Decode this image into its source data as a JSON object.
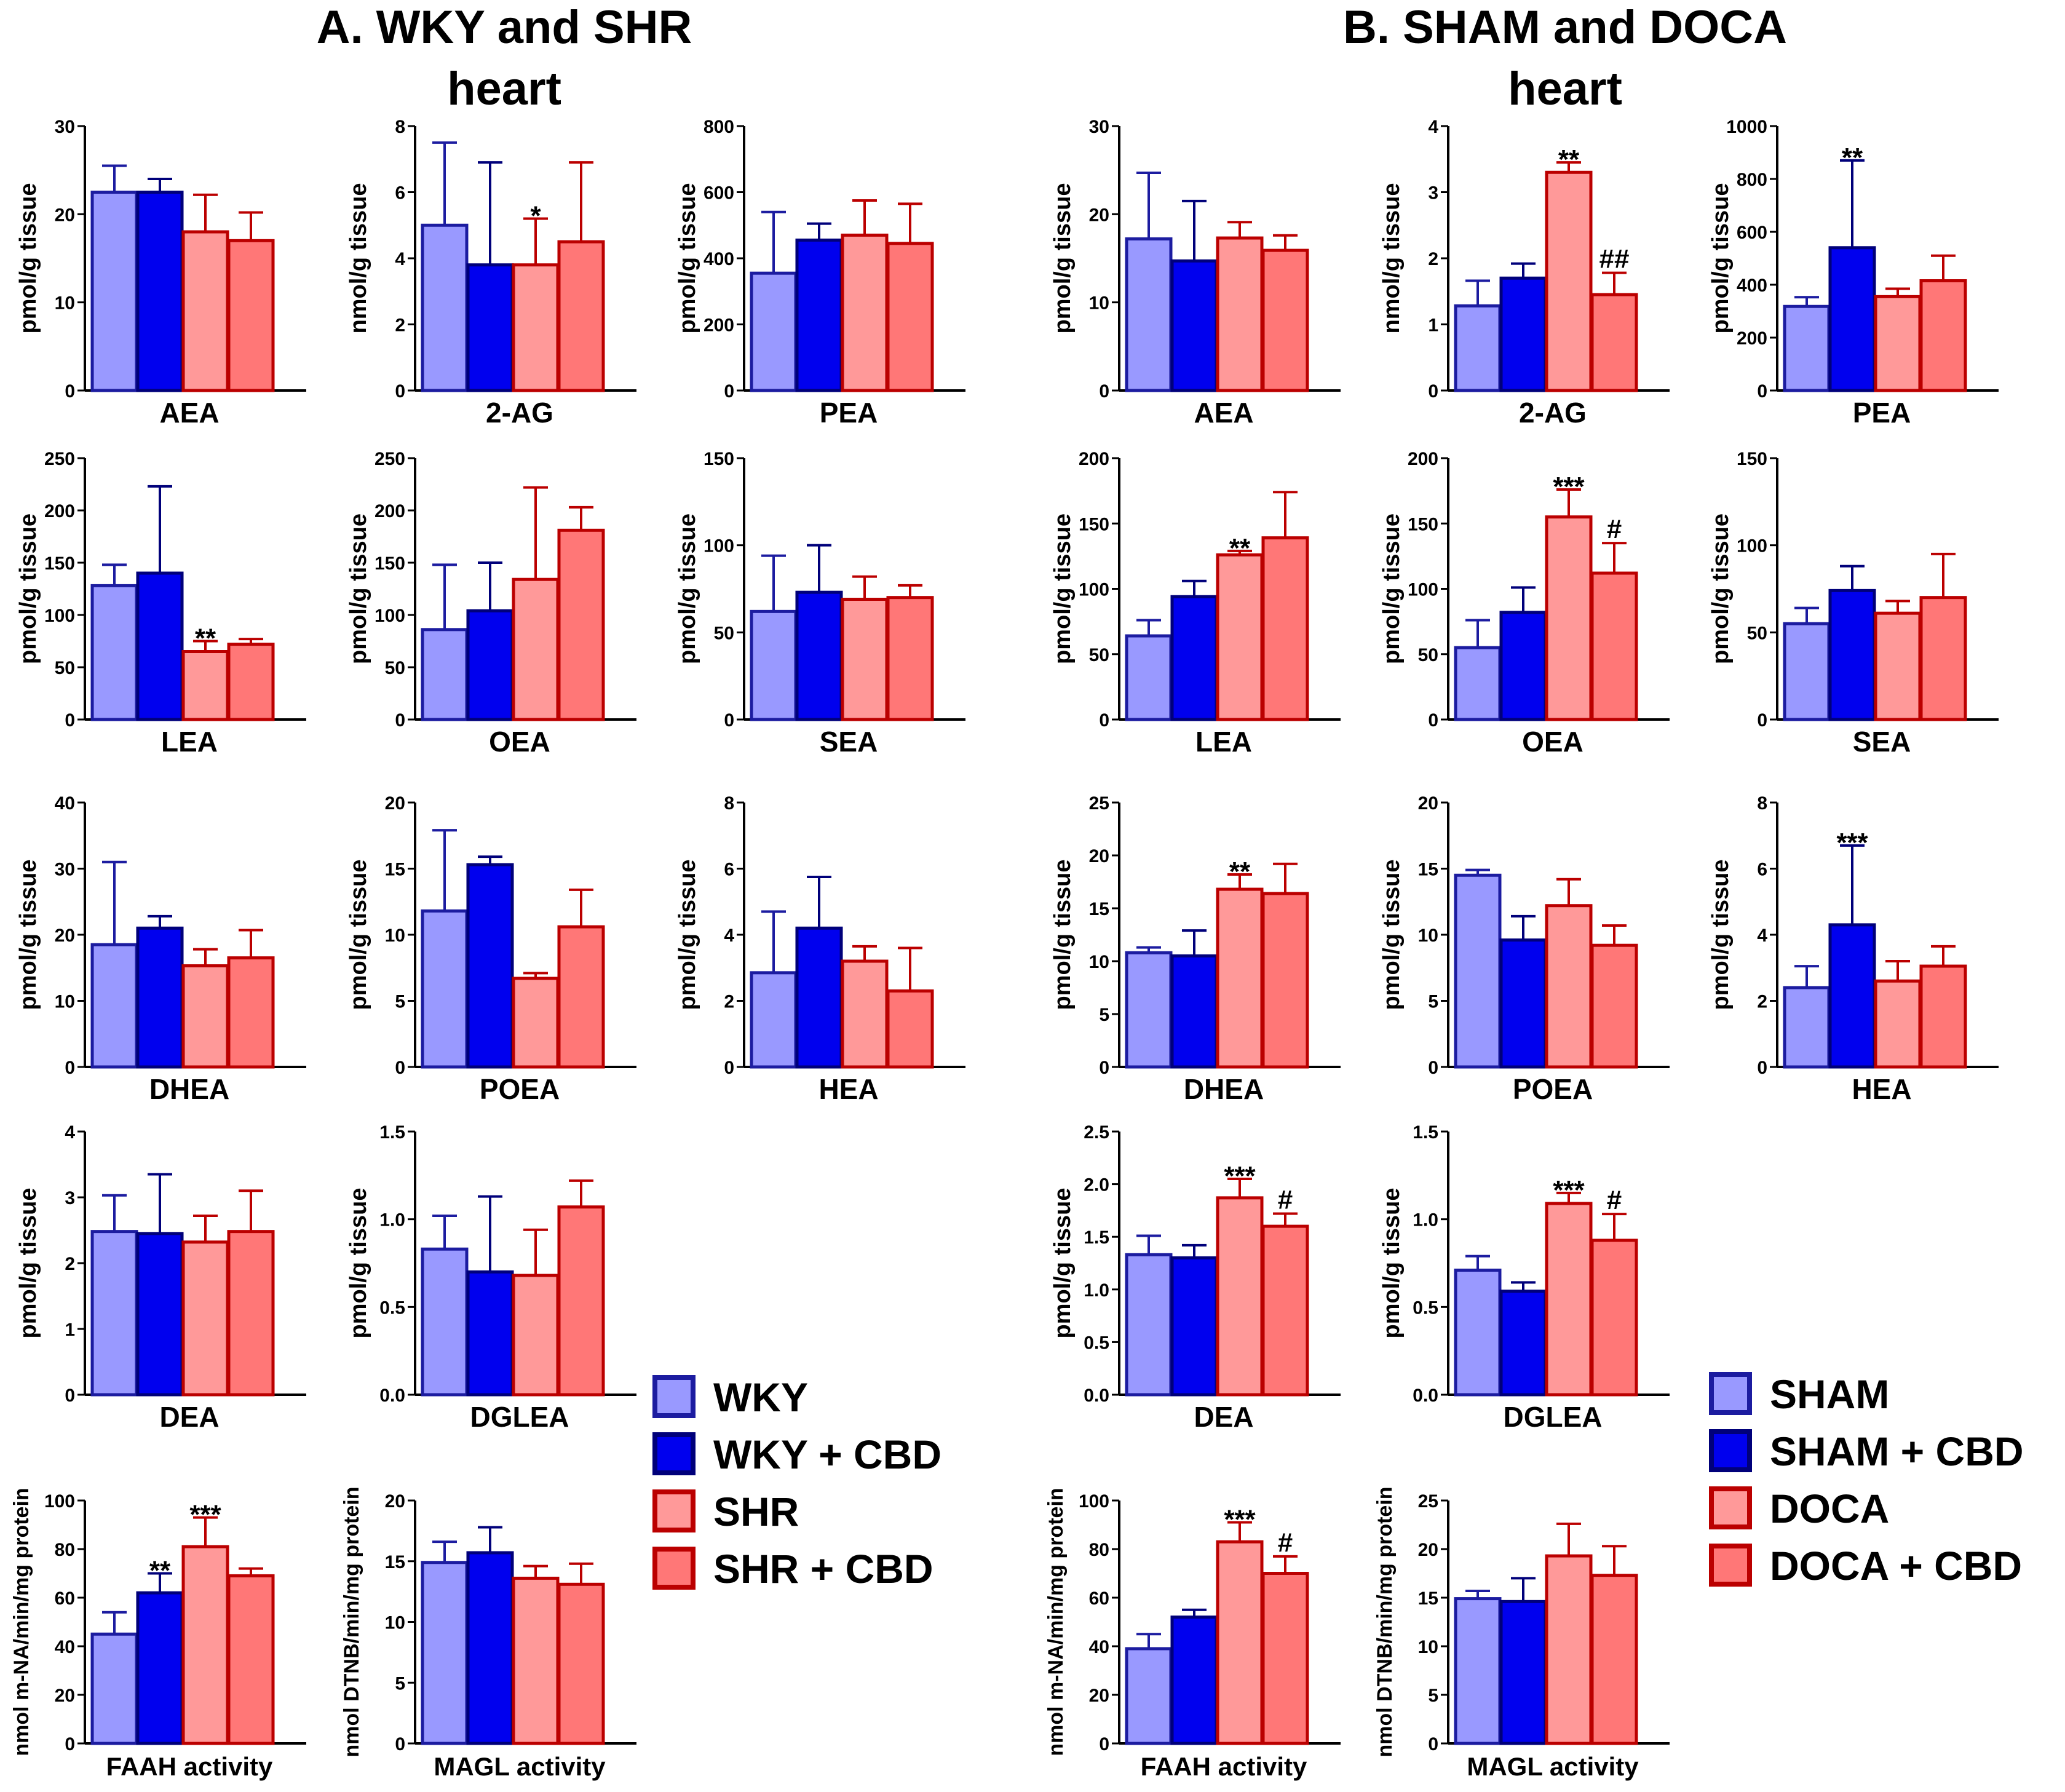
{
  "titles": {
    "A_line1": "A. WKY and SHR",
    "A_line2": "heart",
    "B_line1": "B. SHAM and DOCA",
    "B_line2": "heart"
  },
  "legend_A": [
    "WKY",
    "WKY + CBD",
    "SHR",
    "SHR + CBD"
  ],
  "legend_B": [
    "SHAM",
    "SHAM + CBD",
    "DOCA",
    "DOCA + CBD"
  ],
  "colors": {
    "fill": [
      "#9999ff",
      "#0000ee",
      "#ff9999",
      "#ff7777"
    ],
    "stroke": [
      "#1c1ca0",
      "#00007a",
      "#bb0000",
      "#bb0000"
    ],
    "error": [
      "#1c1ca0",
      "#00007a",
      "#bb0000",
      "#bb0000"
    ]
  },
  "chart_data": [
    {
      "panel": "A",
      "type": "bar",
      "title": "AEA",
      "xlabel": "AEA",
      "ylabel": "pmol/g tissue",
      "ylim": [
        0,
        30
      ],
      "yticks": [
        "0",
        "10",
        "20",
        "30"
      ],
      "values": [
        22.5,
        22.5,
        18,
        17
      ],
      "errors": [
        3,
        1.5,
        4.2,
        3.2
      ],
      "annotations": [
        "",
        "",
        "",
        ""
      ]
    },
    {
      "panel": "A",
      "type": "bar",
      "title": "2-AG",
      "xlabel": "2-AG",
      "ylabel": "nmol/g tissue",
      "ylim": [
        0,
        8
      ],
      "yticks": [
        "0",
        "2",
        "4",
        "6",
        "8"
      ],
      "values": [
        5,
        3.8,
        3.8,
        4.5
      ],
      "errors": [
        2.5,
        3.1,
        1.4,
        2.4
      ],
      "annotations": [
        "",
        "",
        "*",
        ""
      ]
    },
    {
      "panel": "A",
      "type": "bar",
      "title": "PEA",
      "xlabel": "PEA",
      "ylabel": "pmol/g tissue",
      "ylim": [
        0,
        800
      ],
      "yticks": [
        "0",
        "200",
        "400",
        "600",
        "800"
      ],
      "values": [
        355,
        455,
        470,
        445
      ],
      "errors": [
        185,
        50,
        105,
        120
      ],
      "annotations": [
        "",
        "",
        "",
        ""
      ]
    },
    {
      "panel": "A",
      "type": "bar",
      "title": "LEA",
      "xlabel": "LEA",
      "ylabel": "pmol/g tissue",
      "ylim": [
        0,
        250
      ],
      "yticks": [
        "0",
        "50",
        "100",
        "150",
        "200",
        "250"
      ],
      "values": [
        128,
        140,
        65,
        72
      ],
      "errors": [
        20,
        83,
        10,
        5
      ],
      "annotations": [
        "",
        "",
        "**",
        ""
      ]
    },
    {
      "panel": "A",
      "type": "bar",
      "title": "OEA",
      "xlabel": "OEA",
      "ylabel": "pmol/g tissue",
      "ylim": [
        0,
        250
      ],
      "yticks": [
        "0",
        "50",
        "100",
        "150",
        "200",
        "250"
      ],
      "values": [
        86,
        104,
        134,
        181
      ],
      "errors": [
        62,
        46,
        88,
        22
      ],
      "annotations": [
        "",
        "",
        "",
        ""
      ]
    },
    {
      "panel": "A",
      "type": "bar",
      "title": "SEA",
      "xlabel": "SEA",
      "ylabel": "pmol/g tissue",
      "ylim": [
        0,
        150
      ],
      "yticks": [
        "0",
        "50",
        "100",
        "150"
      ],
      "values": [
        62,
        73,
        69,
        70
      ],
      "errors": [
        32,
        27,
        13,
        7
      ],
      "annotations": [
        "",
        "",
        "",
        ""
      ]
    },
    {
      "panel": "A",
      "type": "bar",
      "title": "DHEA",
      "xlabel": "DHEA",
      "ylabel": "pmol/g tissue",
      "ylim": [
        0,
        40
      ],
      "yticks": [
        "0",
        "10",
        "20",
        "30",
        "40"
      ],
      "values": [
        18.5,
        21,
        15.3,
        16.5
      ],
      "errors": [
        12.5,
        1.8,
        2.5,
        4.2
      ],
      "annotations": [
        "",
        "",
        "",
        ""
      ]
    },
    {
      "panel": "A",
      "type": "bar",
      "title": "POEA",
      "xlabel": "POEA",
      "ylabel": "pmol/g tissue",
      "ylim": [
        0,
        20
      ],
      "yticks": [
        "0",
        "5",
        "10",
        "15",
        "20"
      ],
      "values": [
        11.8,
        15.3,
        6.7,
        10.6
      ],
      "errors": [
        6.1,
        0.6,
        0.4,
        2.8
      ],
      "annotations": [
        "",
        "",
        "",
        ""
      ]
    },
    {
      "panel": "A",
      "type": "bar",
      "title": "HEA",
      "xlabel": "HEA",
      "ylabel": "pmol/g tissue",
      "ylim": [
        0,
        8
      ],
      "yticks": [
        "0",
        "2",
        "4",
        "6",
        "8"
      ],
      "values": [
        2.85,
        4.2,
        3.2,
        2.3
      ],
      "errors": [
        1.85,
        1.55,
        0.45,
        1.3
      ],
      "annotations": [
        "",
        "",
        "",
        ""
      ]
    },
    {
      "panel": "A",
      "type": "bar",
      "title": "DEA",
      "xlabel": "DEA",
      "ylabel": "pmol/g tissue",
      "ylim": [
        0,
        4
      ],
      "yticks": [
        "0",
        "1",
        "2",
        "3",
        "4"
      ],
      "values": [
        2.48,
        2.45,
        2.32,
        2.48
      ],
      "errors": [
        0.55,
        0.9,
        0.4,
        0.62
      ],
      "annotations": [
        "",
        "",
        "",
        ""
      ]
    },
    {
      "panel": "A",
      "type": "bar",
      "title": "DGLEA",
      "xlabel": "DGLEA",
      "ylabel": "pmol/g tissue",
      "ylim": [
        0,
        1.5
      ],
      "yticks": [
        "0.0",
        "0.5",
        "1.0",
        "1.5"
      ],
      "values": [
        0.83,
        0.7,
        0.68,
        1.07
      ],
      "errors": [
        0.19,
        0.43,
        0.26,
        0.15
      ],
      "annotations": [
        "",
        "",
        "",
        ""
      ]
    },
    {
      "panel": "A",
      "type": "bar",
      "title": "FAAH activity",
      "xlabel": "FAAH activity",
      "ylabel": "nmol m-NA/min/mg protein",
      "ylim": [
        0,
        100
      ],
      "yticks": [
        "0",
        "20",
        "40",
        "60",
        "80",
        "100"
      ],
      "values": [
        45,
        62,
        81,
        69
      ],
      "errors": [
        9,
        8,
        12,
        3
      ],
      "annotations": [
        "",
        "**",
        "***",
        ""
      ]
    },
    {
      "panel": "A",
      "type": "bar",
      "title": "MAGL activity",
      "xlabel": "MAGL activity",
      "ylabel": "nmol DTNB/min/mg protein",
      "ylim": [
        0,
        20
      ],
      "yticks": [
        "0",
        "5",
        "10",
        "15",
        "20"
      ],
      "values": [
        14.9,
        15.7,
        13.6,
        13.1
      ],
      "errors": [
        1.7,
        2.1,
        1.0,
        1.7
      ],
      "annotations": [
        "",
        "",
        "",
        ""
      ]
    },
    {
      "panel": "B",
      "type": "bar",
      "title": "AEA",
      "xlabel": "AEA",
      "ylabel": "pmol/g tissue",
      "ylim": [
        0,
        30
      ],
      "yticks": [
        "0",
        "10",
        "20",
        "30"
      ],
      "values": [
        17.2,
        14.7,
        17.3,
        15.9
      ],
      "errors": [
        7.5,
        6.8,
        1.8,
        1.7
      ],
      "annotations": [
        "",
        "",
        "",
        ""
      ]
    },
    {
      "panel": "B",
      "type": "bar",
      "title": "2-AG",
      "xlabel": "2-AG",
      "ylabel": "nmol/g tissue",
      "ylim": [
        0,
        4
      ],
      "yticks": [
        "0",
        "1",
        "2",
        "3",
        "4"
      ],
      "values": [
        1.28,
        1.7,
        3.3,
        1.45
      ],
      "errors": [
        0.38,
        0.22,
        0.15,
        0.33
      ],
      "annotations": [
        "",
        "",
        "**",
        "##"
      ]
    },
    {
      "panel": "B",
      "type": "bar",
      "title": "PEA",
      "xlabel": "PEA",
      "ylabel": "pmol/g tissue",
      "ylim": [
        0,
        1000
      ],
      "yticks": [
        "0",
        "200",
        "400",
        "600",
        "800",
        "1000"
      ],
      "values": [
        318,
        540,
        355,
        415
      ],
      "errors": [
        35,
        330,
        30,
        95
      ],
      "annotations": [
        "",
        "**",
        "",
        ""
      ]
    },
    {
      "panel": "B",
      "type": "bar",
      "title": "LEA",
      "xlabel": "LEA",
      "ylabel": "pmol/g tissue",
      "ylim": [
        0,
        200
      ],
      "yticks": [
        "0",
        "50",
        "100",
        "150",
        "200"
      ],
      "values": [
        64,
        94,
        126,
        139
      ],
      "errors": [
        12,
        12,
        3,
        35
      ],
      "annotations": [
        "",
        "",
        "**",
        ""
      ]
    },
    {
      "panel": "B",
      "type": "bar",
      "title": "OEA",
      "xlabel": "OEA",
      "ylabel": "pmol/g tissue",
      "ylim": [
        0,
        200
      ],
      "yticks": [
        "0",
        "50",
        "100",
        "150",
        "200"
      ],
      "values": [
        55,
        82,
        155,
        112
      ],
      "errors": [
        21,
        19,
        21,
        23
      ],
      "annotations": [
        "",
        "",
        "***",
        "#"
      ]
    },
    {
      "panel": "B",
      "type": "bar",
      "title": "SEA",
      "xlabel": "SEA",
      "ylabel": "pmol/g tissue",
      "ylim": [
        0,
        150
      ],
      "yticks": [
        "0",
        "50",
        "100",
        "150"
      ],
      "values": [
        55,
        74,
        61,
        70
      ],
      "errors": [
        9,
        14,
        7,
        25
      ],
      "annotations": [
        "",
        "",
        "",
        ""
      ]
    },
    {
      "panel": "B",
      "type": "bar",
      "title": "DHEA",
      "xlabel": "DHEA",
      "ylabel": "pmol/g tissue",
      "ylim": [
        0,
        25
      ],
      "yticks": [
        "0",
        "5",
        "10",
        "15",
        "20",
        "25"
      ],
      "values": [
        10.8,
        10.5,
        16.8,
        16.4
      ],
      "errors": [
        0.5,
        2.4,
        1.4,
        2.8
      ],
      "annotations": [
        "",
        "",
        "**",
        ""
      ]
    },
    {
      "panel": "B",
      "type": "bar",
      "title": "POEA",
      "xlabel": "POEA",
      "ylabel": "pmol/g tissue",
      "ylim": [
        0,
        20
      ],
      "yticks": [
        "0",
        "5",
        "10",
        "15",
        "20"
      ],
      "values": [
        14.5,
        9.6,
        12.2,
        9.2
      ],
      "errors": [
        0.4,
        1.8,
        2.0,
        1.5
      ],
      "annotations": [
        "",
        "",
        "",
        ""
      ]
    },
    {
      "panel": "B",
      "type": "bar",
      "title": "HEA",
      "xlabel": "HEA",
      "ylabel": "pmol/g tissue",
      "ylim": [
        0,
        8
      ],
      "yticks": [
        "0",
        "2",
        "4",
        "6",
        "8"
      ],
      "values": [
        2.4,
        4.3,
        2.6,
        3.05
      ],
      "errors": [
        0.65,
        2.4,
        0.6,
        0.6
      ],
      "annotations": [
        "",
        "***",
        "",
        ""
      ]
    },
    {
      "panel": "B",
      "type": "bar",
      "title": "DEA",
      "xlabel": "DEA",
      "ylabel": "pmol/g tissue",
      "ylim": [
        0,
        2.5
      ],
      "yticks": [
        "0.0",
        "0.5",
        "1.0",
        "1.5",
        "2.0",
        "2.5"
      ],
      "values": [
        1.33,
        1.3,
        1.87,
        1.6
      ],
      "errors": [
        0.18,
        0.12,
        0.18,
        0.12
      ],
      "annotations": [
        "",
        "",
        "***",
        "#"
      ]
    },
    {
      "panel": "B",
      "type": "bar",
      "title": "DGLEA",
      "xlabel": "DGLEA",
      "ylabel": "pmol/g tissue",
      "ylim": [
        0,
        1.5
      ],
      "yticks": [
        "0.0",
        "0.5",
        "1.0",
        "1.5"
      ],
      "values": [
        0.71,
        0.59,
        1.09,
        0.88
      ],
      "errors": [
        0.08,
        0.05,
        0.06,
        0.15
      ],
      "annotations": [
        "",
        "",
        "***",
        "#"
      ]
    },
    {
      "panel": "B",
      "type": "bar",
      "title": "FAAH activity",
      "xlabel": "FAAH activity",
      "ylabel": "nmol m-NA/min/mg protein",
      "ylim": [
        0,
        100
      ],
      "yticks": [
        "0",
        "20",
        "40",
        "60",
        "80",
        "100"
      ],
      "values": [
        39,
        52,
        83,
        70
      ],
      "errors": [
        6,
        3,
        8,
        7
      ],
      "annotations": [
        "",
        "",
        "***",
        "#"
      ]
    },
    {
      "panel": "B",
      "type": "bar",
      "title": "MAGL activity",
      "xlabel": "MAGL activity",
      "ylabel": "nmol DTNB/min/mg protein",
      "ylim": [
        0,
        25
      ],
      "yticks": [
        "0",
        "5",
        "10",
        "15",
        "20",
        "25"
      ],
      "values": [
        14.9,
        14.6,
        19.3,
        17.3
      ],
      "errors": [
        0.8,
        2.4,
        3.3,
        3.0
      ],
      "annotations": [
        "",
        "",
        "",
        ""
      ]
    }
  ]
}
